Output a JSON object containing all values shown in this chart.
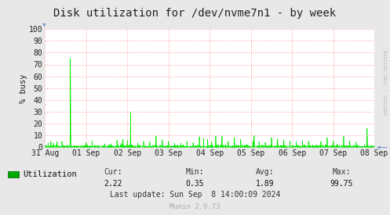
{
  "title": "Disk utilization for /dev/nvme7n1 - by week",
  "ylabel": "% busy",
  "background_color": "#E8E8E8",
  "plot_bg_color": "#FFFFFF",
  "grid_color": "#FF9999",
  "line_color": "#00EE00",
  "fill_color": "#00CC00",
  "ylim": [
    0,
    100
  ],
  "yticks": [
    0,
    10,
    20,
    30,
    40,
    50,
    60,
    70,
    80,
    90,
    100
  ],
  "xtick_labels": [
    "31 Aug",
    "01 Sep",
    "02 Sep",
    "03 Sep",
    "04 Sep",
    "05 Sep",
    "06 Sep",
    "07 Sep",
    "08 Sep"
  ],
  "legend_label": "Utilization",
  "legend_color": "#00AA00",
  "cur_label": "Cur:",
  "cur_val": "2.22",
  "min_label": "Min:",
  "min_val": "0.35",
  "avg_label": "Avg:",
  "avg_val": "1.89",
  "max_label": "Max:",
  "max_val": "99.75",
  "last_update": "Last update: Sun Sep  8 14:00:09 2024",
  "munin_version": "Munin 2.0.73",
  "watermark": "RRDTOOL / TOBI OETIKER",
  "title_fontsize": 10,
  "axis_fontsize": 7,
  "legend_fontsize": 7.5,
  "stats_fontsize": 7
}
